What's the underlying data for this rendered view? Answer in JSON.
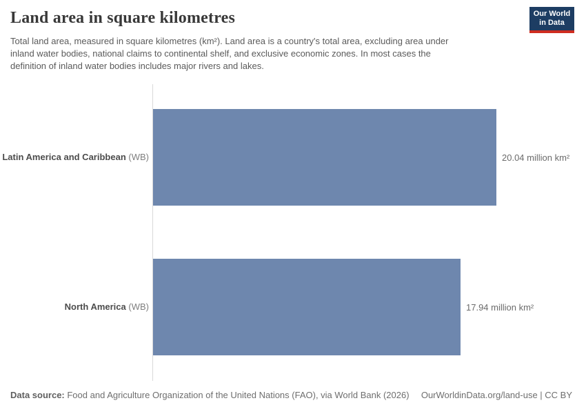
{
  "logo": {
    "line1": "Our World",
    "line2": "in Data",
    "bg_color": "#1d3d63",
    "accent_color": "#cf2d20"
  },
  "header": {
    "title": "Land area in square kilometres",
    "subtitle": "Total land area, measured in square kilometres (km²). Land area is a country's total area, excluding area under\ninland water bodies, national claims to continental shelf, and exclusive economic zones. In most cases the\ndefinition of inland water bodies includes major rivers and lakes."
  },
  "chart_data": {
    "type": "bar",
    "orientation": "horizontal",
    "title": "Land area in square kilometres",
    "categories": [
      "Latin America and Caribbean",
      "North America"
    ],
    "category_suffix": "(WB)",
    "values": [
      20.04,
      17.94
    ],
    "unit": "million km²",
    "value_labels": [
      "20.04 million km²",
      "17.94 million km²"
    ],
    "xlim": [
      0,
      20.04
    ],
    "bar_color": "#6e87ae",
    "axis_color": "#d9d9d9",
    "grid": false,
    "legend": "none"
  },
  "footer": {
    "source_label": "Data source:",
    "source_text": " Food and Agriculture Organization of the United Nations (FAO), via World Bank (2026)",
    "right_text": "OurWorldinData.org/land-use | CC BY"
  }
}
